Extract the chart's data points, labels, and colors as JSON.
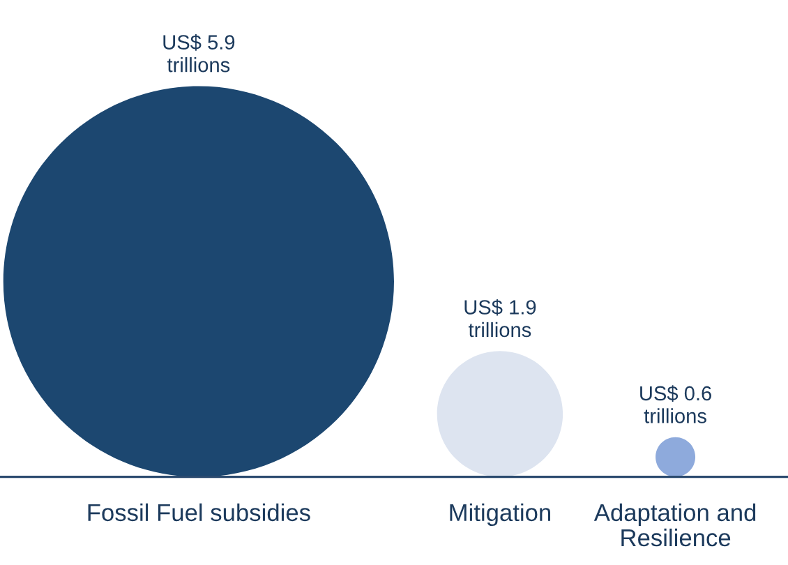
{
  "chart_data": {
    "type": "other",
    "categories": [
      "Fossil Fuel subsidies",
      "Mitigation",
      "Adaptation and\nResilience"
    ],
    "values": [
      5.9,
      1.9,
      0.6
    ],
    "value_labels": [
      "US$ 5.9\ntrillions",
      "US$ 1.9\ntrillions",
      "US$ 0.6\ntrillions"
    ],
    "colors": [
      "#1c4770",
      "#dde4f0",
      "#8eaadc"
    ]
  }
}
